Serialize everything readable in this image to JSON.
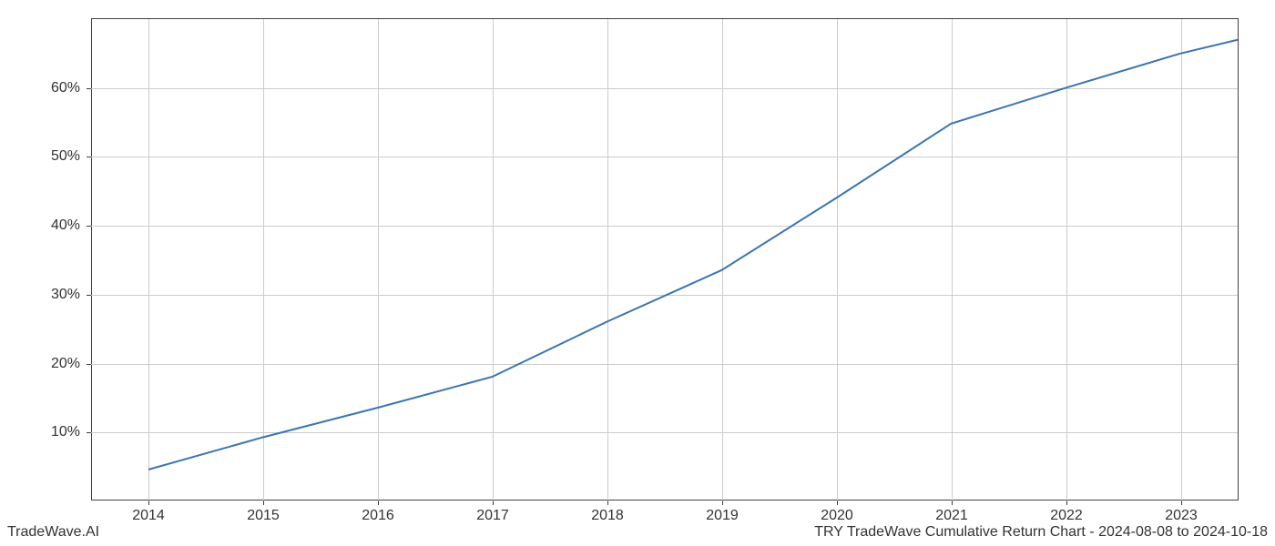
{
  "chart": {
    "type": "line",
    "x_values": [
      2014,
      2015,
      2016,
      2017,
      2018,
      2019,
      2020,
      2021,
      2022,
      2023,
      2023.5
    ],
    "y_values": [
      4.5,
      9.2,
      13.5,
      18.0,
      26.0,
      33.5,
      44.0,
      54.8,
      60.0,
      65.0,
      67.0
    ],
    "line_color": "#3b75af",
    "line_width": 2,
    "background_color": "#ffffff",
    "grid_color": "#cccccc",
    "axis_color": "#404040",
    "xlim": [
      2013.5,
      2023.5
    ],
    "ylim": [
      0,
      70
    ],
    "x_ticks": [
      2014,
      2015,
      2016,
      2017,
      2018,
      2019,
      2020,
      2021,
      2022,
      2023
    ],
    "x_tick_labels": [
      "2014",
      "2015",
      "2016",
      "2017",
      "2018",
      "2019",
      "2020",
      "2021",
      "2022",
      "2023"
    ],
    "y_ticks": [
      10,
      20,
      30,
      40,
      50,
      60
    ],
    "y_tick_labels": [
      "10%",
      "20%",
      "30%",
      "40%",
      "50%",
      "60%"
    ],
    "tick_fontsize": 16,
    "tick_color": "#333333"
  },
  "footer": {
    "left_text": "TradeWave.AI",
    "right_text": "TRY TradeWave Cumulative Return Chart - 2024-08-08 to 2024-10-18",
    "fontsize": 16,
    "color": "#333333"
  }
}
